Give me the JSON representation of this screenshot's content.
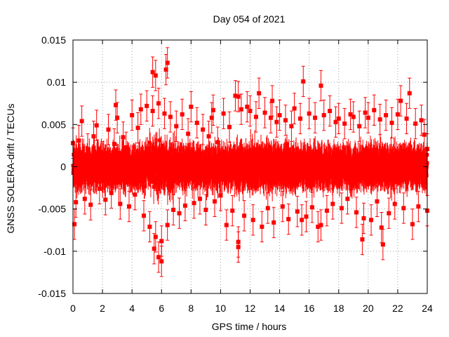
{
  "chart_data": {
    "type": "scatter",
    "title": "Day 054 of 2021",
    "xlabel": "GPS time / hours",
    "ylabel": "GNSS SOLERA-drift / TECUs",
    "xlim": [
      0,
      24
    ],
    "ylim": [
      -0.015,
      0.015
    ],
    "x_ticks": [
      0,
      2,
      4,
      6,
      8,
      10,
      12,
      14,
      16,
      18,
      20,
      22,
      24
    ],
    "y_ticks": [
      -0.015,
      -0.01,
      -0.005,
      0,
      0.005,
      0.01,
      0.015
    ],
    "x_tick_labels": [
      "0",
      "2",
      "4",
      "6",
      "8",
      "10",
      "12",
      "14",
      "16",
      "18",
      "20",
      "22",
      "24"
    ],
    "y_tick_labels": [
      "-0.015",
      "-0.01",
      "-0.005",
      "0",
      "0.005",
      "0.01",
      "0.015"
    ],
    "grid": true,
    "legend": "none",
    "marker": "square",
    "error_bars": true,
    "series_color": "#ff0000",
    "series": [
      {
        "x": [
          0.0,
          0.2,
          0.4,
          0.6,
          0.8,
          1.0,
          1.2,
          1.4,
          1.6,
          1.8,
          2.0,
          2.2,
          2.4,
          2.6,
          2.8,
          3.0,
          3.2,
          3.4,
          3.6,
          3.8,
          4.0,
          4.2,
          4.4,
          4.6,
          4.8,
          5.0,
          5.2,
          5.4,
          5.6,
          5.8,
          6.0,
          6.2,
          6.4,
          6.6,
          6.8,
          7.0,
          7.2,
          7.4,
          7.6,
          7.8,
          8.0,
          8.2,
          8.4,
          8.6,
          8.8,
          9.0,
          9.2,
          9.4,
          9.6,
          9.8,
          10.0,
          10.2,
          10.4,
          10.6,
          10.8,
          11.0,
          11.2,
          11.4,
          11.6,
          11.8,
          12.0,
          12.2,
          12.4,
          12.6,
          12.8,
          13.0,
          13.2,
          13.4,
          13.6,
          13.8,
          14.0,
          14.2,
          14.4,
          14.6,
          14.8,
          15.0,
          15.2,
          15.4,
          15.6,
          15.8,
          16.0,
          16.2,
          16.4,
          16.6,
          16.8,
          17.0,
          17.2,
          17.4,
          17.6,
          17.8,
          18.0,
          18.2,
          18.4,
          18.6,
          18.8,
          19.0,
          19.2,
          19.4,
          19.6,
          19.8,
          20.0,
          20.2,
          20.4,
          20.6,
          20.8,
          21.0,
          21.2,
          21.4,
          21.6,
          21.8,
          22.0,
          22.2,
          22.4,
          22.6,
          22.8,
          23.0,
          23.2,
          23.4,
          23.6,
          23.8,
          24.0,
          5.4,
          5.6,
          6.3,
          6.4,
          15.5,
          16.8,
          11.2,
          13.5,
          5.8,
          6.0,
          5.5,
          11.2,
          19.7,
          20.9,
          2.9,
          9.5,
          0.1,
          24.0
        ],
        "y": [
          0.0028,
          -0.0042,
          0.0031,
          0.0054,
          -0.0038,
          0.0021,
          -0.0045,
          0.0036,
          0.0049,
          -0.0026,
          0.0012,
          -0.0039,
          0.0044,
          -0.0031,
          0.0027,
          0.0058,
          -0.0044,
          0.0035,
          0.0023,
          -0.0047,
          0.0061,
          -0.0033,
          0.0046,
          0.0068,
          -0.0058,
          0.0072,
          -0.0071,
          0.0066,
          -0.0083,
          0.0075,
          -0.0088,
          0.0063,
          -0.0069,
          0.0059,
          -0.0051,
          0.0048,
          -0.0055,
          0.0062,
          -0.0046,
          0.0039,
          0.0071,
          -0.0043,
          0.0052,
          -0.0038,
          0.0044,
          -0.0051,
          0.0036,
          0.0058,
          -0.0041,
          0.0029,
          -0.0034,
          0.0063,
          -0.0069,
          0.0047,
          -0.0052,
          0.0084,
          -0.0095,
          0.0068,
          -0.0058,
          0.0071,
          0.0066,
          -0.0063,
          0.0059,
          0.0087,
          -0.0071,
          0.0064,
          -0.0049,
          0.0058,
          -0.0066,
          0.0053,
          0.0061,
          -0.0047,
          0.0055,
          -0.0062,
          0.0048,
          0.0069,
          -0.0053,
          0.0057,
          0.0101,
          -0.0059,
          0.0063,
          -0.0048,
          0.0058,
          -0.0071,
          0.0096,
          0.0061,
          -0.0052,
          0.0066,
          -0.0044,
          0.0053,
          0.0057,
          -0.0049,
          0.0051,
          -0.0038,
          0.0062,
          0.0059,
          -0.0054,
          0.0048,
          -0.0086,
          0.0064,
          0.0058,
          -0.0063,
          0.0067,
          -0.0041,
          0.0056,
          -0.0092,
          0.0061,
          -0.0055,
          0.0052,
          -0.0044,
          0.0062,
          0.0078,
          -0.0049,
          0.0057,
          0.0087,
          -0.0068,
          0.0051,
          -0.0047,
          0.0055,
          0.0038,
          -0.0052,
          0.0112,
          0.0108,
          0.0115,
          0.0123,
          -0.0063,
          -0.0069,
          -0.0089,
          0.0078,
          -0.0107,
          -0.0112,
          -0.0097,
          0.0083,
          -0.0061,
          -0.0072,
          0.0073,
          0.0067,
          -0.0068,
          0.0021
        ],
        "y_error": 0.0018
      }
    ]
  }
}
